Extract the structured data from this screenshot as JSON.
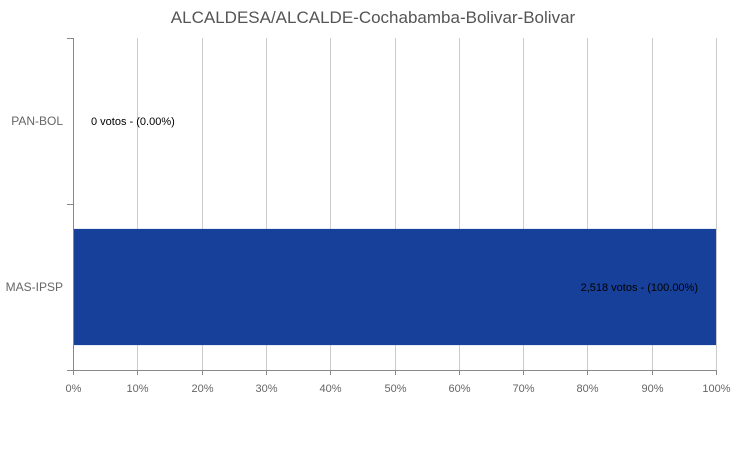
{
  "chart_data": {
    "type": "bar",
    "orientation": "horizontal",
    "title": "ALCALDESA/ALCALDE-Cochabamba-Bolivar-Bolivar",
    "categories": [
      "PAN-BOL",
      "MAS-IPSP"
    ],
    "values": [
      0,
      100
    ],
    "votes": [
      0,
      2518
    ],
    "data_labels": [
      "0 votos - (0.00%)",
      "2,518 votos - (100.00%)"
    ],
    "xlim": [
      0,
      100
    ],
    "xticks": [
      "0%",
      "10%",
      "20%",
      "30%",
      "40%",
      "50%",
      "60%",
      "70%",
      "80%",
      "90%",
      "100%"
    ],
    "grid": true,
    "legend": "none",
    "bar_color": "#17409a"
  }
}
